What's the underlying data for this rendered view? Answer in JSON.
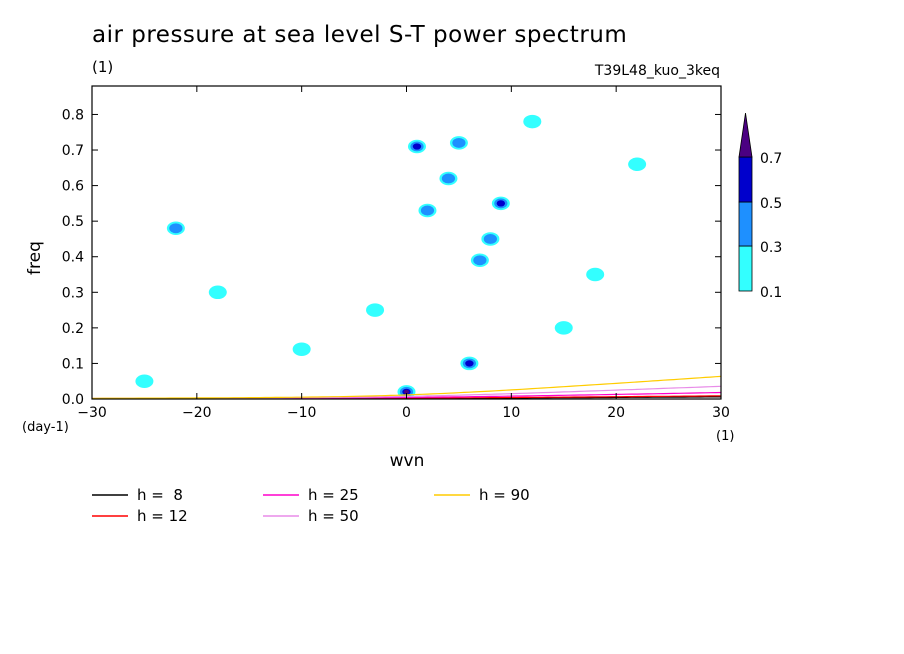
{
  "header": {
    "title": "air pressure at sea level S-T power spectrum",
    "subtitle": "(1)",
    "run_id": "T39L48_kuo_3keq"
  },
  "chart_data": {
    "type": "heatmap",
    "title": "air pressure at sea level S-T power spectrum",
    "xlabel": "wvn",
    "ylabel": "freq",
    "x_unit": "(1)",
    "y_unit": "(day-1)",
    "xlim": [
      -30,
      30
    ],
    "ylim": [
      0,
      0.88
    ],
    "xticks": [
      -30,
      -20,
      -10,
      0,
      10,
      20,
      30
    ],
    "yticks": [
      0.0,
      0.1,
      0.2,
      0.3,
      0.4,
      0.5,
      0.6,
      0.7,
      0.8
    ],
    "ytick_labels": [
      "0.0",
      "0.1",
      "0.2",
      "0.3",
      "0.4",
      "0.5",
      "0.6",
      "0.7",
      "0.8"
    ],
    "contour_levels": [
      0.1,
      0.3,
      0.5,
      0.7
    ],
    "level_colors": [
      "#33ffff",
      "#1e90ff",
      "#0000cc",
      "#4b0082"
    ],
    "colorbar_labels": [
      "0.1",
      "0.3",
      "0.5",
      "0.7"
    ],
    "patches": [
      {
        "x": 0,
        "y": 0.02,
        "level": 3
      },
      {
        "x": 6,
        "y": 0.1,
        "level": 2
      },
      {
        "x": 1,
        "y": 0.71,
        "level": 2
      },
      {
        "x": 4,
        "y": 0.62,
        "level": 1
      },
      {
        "x": 9,
        "y": 0.55,
        "level": 2
      },
      {
        "x": 2,
        "y": 0.53,
        "level": 1
      },
      {
        "x": 8,
        "y": 0.45,
        "level": 1
      },
      {
        "x": 7,
        "y": 0.39,
        "level": 1
      },
      {
        "x": 5,
        "y": 0.72,
        "level": 1
      },
      {
        "x": -22,
        "y": 0.48,
        "level": 1
      },
      {
        "x": -3,
        "y": 0.25,
        "level": 0
      },
      {
        "x": -18,
        "y": 0.3,
        "level": 0
      },
      {
        "x": 15,
        "y": 0.2,
        "level": 0
      },
      {
        "x": 22,
        "y": 0.66,
        "level": 0
      },
      {
        "x": -25,
        "y": 0.05,
        "level": 0
      },
      {
        "x": 12,
        "y": 0.78,
        "level": 0
      },
      {
        "x": -10,
        "y": 0.14,
        "level": 0
      },
      {
        "x": 18,
        "y": 0.35,
        "level": 0
      }
    ],
    "curves": [
      {
        "name": "h =  8",
        "h": 8,
        "color": "#000000"
      },
      {
        "name": "h = 12",
        "h": 12,
        "color": "#ff0000"
      },
      {
        "name": "h = 25",
        "h": 25,
        "color": "#ff00cc"
      },
      {
        "name": "h = 50",
        "h": 50,
        "color": "#e88ce8"
      },
      {
        "name": "h = 90",
        "h": 90,
        "color": "#ffcc00"
      }
    ]
  }
}
